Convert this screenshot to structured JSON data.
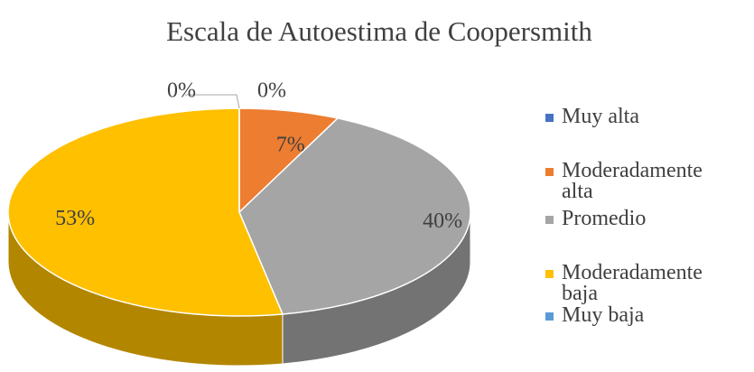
{
  "chart_data": {
    "type": "pie",
    "title": "Escala de Autoestima de Coopersmith",
    "categories": [
      "Muy alta",
      "Moderadamente alta",
      "Promedio",
      "Moderadamente baja",
      "Muy baja"
    ],
    "values": [
      0,
      7,
      40,
      53,
      0
    ],
    "value_labels": [
      "0%",
      "7%",
      "40%",
      "53%",
      "0%"
    ],
    "colors": [
      "#4472c4",
      "#ed7d31",
      "#a5a5a5",
      "#ffc000",
      "#5b9bd5"
    ],
    "legend": "right"
  }
}
